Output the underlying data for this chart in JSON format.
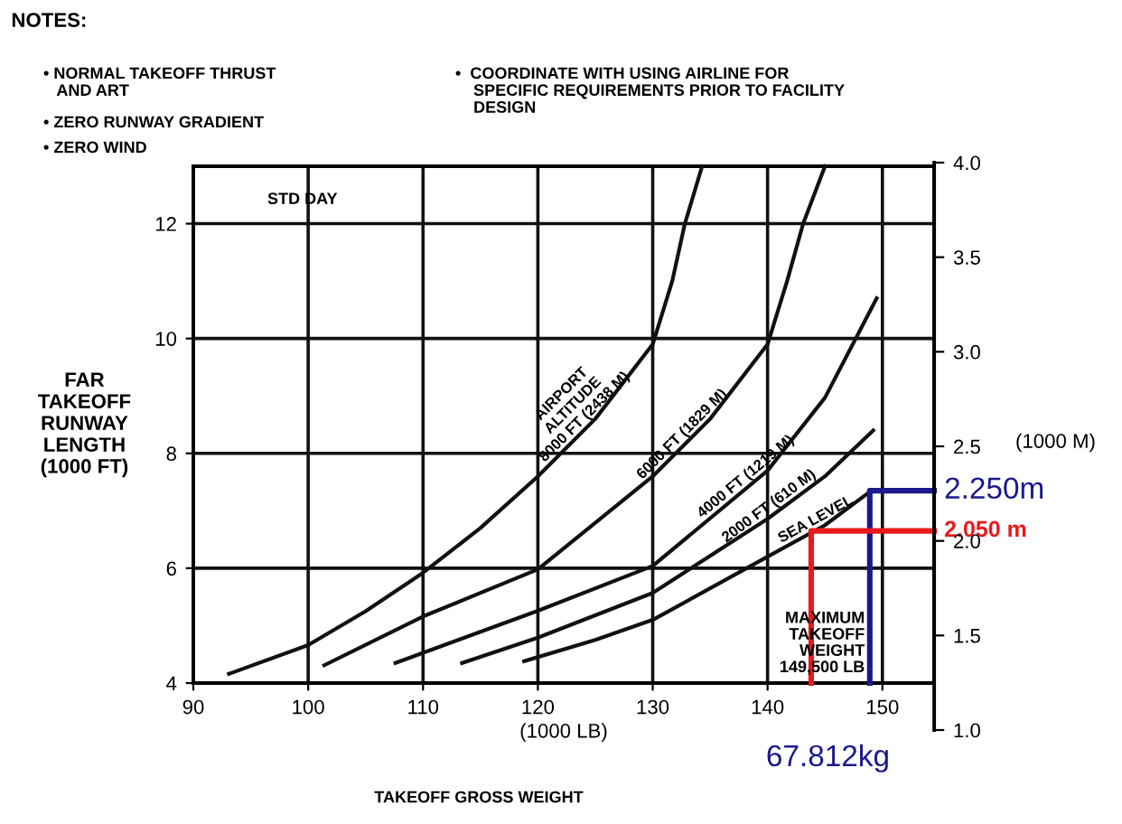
{
  "chart_data": {
    "type": "line",
    "title": "NOTES:",
    "xlabel": "(1000 LB)",
    "ylabel": "FAR\nTAKEOFF\nRUNWAY\nLENGTH\n(1000 FT)",
    "y2label": "(1000 M)",
    "xlim": [
      90,
      154.5
    ],
    "xticks": [
      90,
      100,
      110,
      120,
      130,
      140,
      150
    ],
    "ylim": [
      4,
      13
    ],
    "yticks": [
      4,
      6,
      8,
      10,
      12
    ],
    "y2lim": [
      1.0,
      4.0
    ],
    "y2ticks": [
      {
        "value": 1.0,
        "label": "1.0"
      },
      {
        "value": 1.5,
        "label": "1.5"
      },
      {
        "value": 2.0,
        "label": "2.0"
      },
      {
        "value": 2.5,
        "label": "2.5"
      },
      {
        "value": 3.0,
        "label": "3.0"
      },
      {
        "value": 3.5,
        "label": "3.5"
      },
      {
        "value": 4.0,
        "label": "4.0"
      }
    ],
    "grid": true,
    "legend": false,
    "marker": "none",
    "line_style": "solid",
    "series": [
      {
        "name": "AIRPORT\nALTITUDE\n8000 FT (2438 M)",
        "color": "#111111",
        "x": [
          93.1,
          100,
          105,
          110,
          115,
          120,
          125,
          130,
          131.7,
          132.8,
          134.3
        ],
        "values": [
          4.16,
          4.66,
          5.25,
          5.92,
          6.7,
          7.6,
          8.6,
          9.9,
          11,
          12,
          13
        ]
      },
      {
        "name": "6000 FT (1829 M)",
        "color": "#111111",
        "x": [
          101.4,
          110,
          120,
          130,
          135,
          140,
          141.7,
          143.1,
          145
        ],
        "values": [
          4.31,
          5.16,
          5.98,
          7.6,
          8.6,
          9.9,
          11,
          12,
          13
        ]
      },
      {
        "name": "4000 FT (1219 M)",
        "color": "#111111",
        "x": [
          107.6,
          120,
          130,
          140,
          145,
          149.5
        ],
        "values": [
          4.35,
          5.26,
          6.04,
          7.7,
          8.97,
          10.7
        ]
      },
      {
        "name": "2000 FT (610 M)",
        "color": "#111111",
        "x": [
          113.4,
          120,
          130,
          140,
          145,
          149.2
        ],
        "values": [
          4.35,
          4.79,
          5.57,
          6.86,
          7.6,
          8.4
        ]
      },
      {
        "name": "SEA LEVEL",
        "color": "#111111",
        "x": [
          118.8,
          125,
          130,
          140,
          145,
          148.9
        ],
        "values": [
          4.38,
          4.75,
          5.1,
          6.2,
          6.75,
          7.33
        ]
      },
      {
        "color": "#1a1a8c",
        "x": [
          148.9,
          148.9,
          154.5
        ],
        "values": [
          4,
          7.35,
          7.35
        ]
      },
      {
        "color": "#e8191c",
        "x": [
          143.8,
          143.8,
          154.5
        ],
        "values": [
          4,
          6.65,
          6.65
        ]
      }
    ],
    "annotations": [
      "• NORMAL TAKEOFF THRUST\n   AND ART",
      "• ZERO RUNWAY GRADIENT",
      "• ZERO WIND",
      "•  COORDINATE WITH USING AIRLINE FOR\n    SPECIFIC REQUIREMENTS PRIOR TO FACILITY\n    DESIGN",
      "STD DAY",
      "TAKEOFF GROSS WEIGHT",
      "MAXIMUM\nTAKEOFF\nWEIGHT\n149,500 LB",
      "2.250m",
      "2.050 m",
      "67.812kg"
    ]
  }
}
